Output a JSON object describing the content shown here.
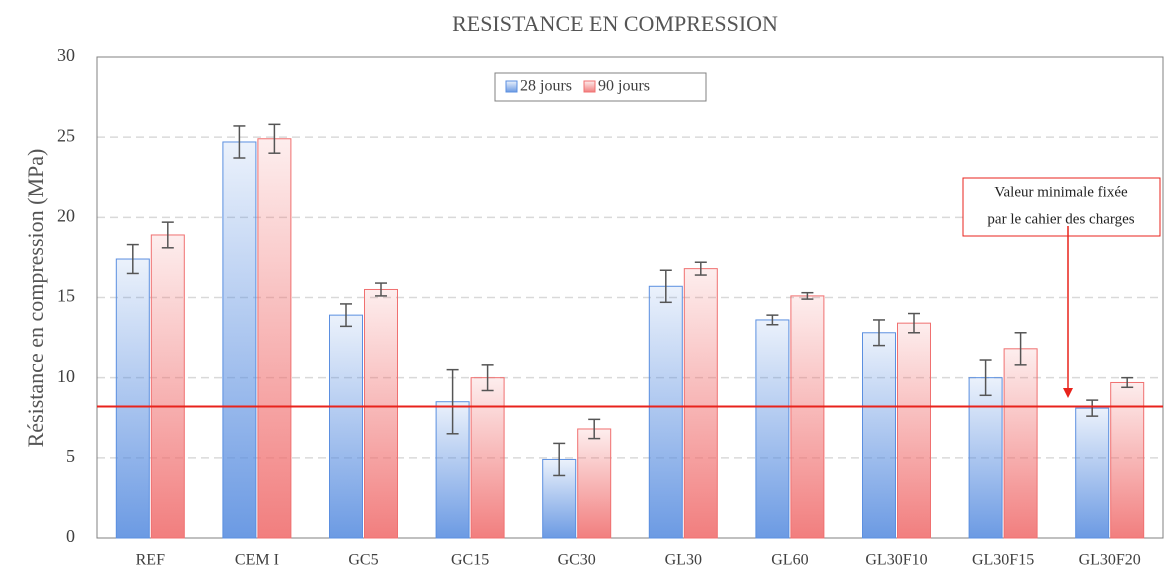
{
  "chart_data": {
    "type": "bar",
    "title": "RESISTANCE EN COMPRESSION",
    "y_label": "Résistance en compression (MPa)",
    "categories": [
      "REF",
      "CEM I",
      "GC5",
      "GC15",
      "GC30",
      "GL30",
      "GL60",
      "GL30F10",
      "GL30F15",
      "GL30F20"
    ],
    "series": [
      {
        "name": "28 jours",
        "color": "#5b8fe0",
        "values": [
          17.4,
          24.7,
          13.9,
          8.5,
          4.9,
          15.7,
          13.6,
          12.8,
          10.0,
          8.1
        ],
        "errors": [
          0.9,
          1.0,
          0.7,
          2.0,
          1.0,
          1.0,
          0.3,
          0.8,
          1.1,
          0.5
        ]
      },
      {
        "name": "90 jours",
        "color": "#f07070",
        "values": [
          18.9,
          24.9,
          15.5,
          10.0,
          6.8,
          16.8,
          15.1,
          13.4,
          11.8,
          9.7
        ],
        "errors": [
          0.8,
          0.9,
          0.4,
          0.8,
          0.6,
          0.4,
          0.2,
          0.6,
          1.0,
          0.3
        ]
      }
    ],
    "ylim": [
      0,
      30
    ],
    "yticks": [
      0,
      5,
      10,
      15,
      20,
      25,
      30
    ],
    "grid": true,
    "legend": "top",
    "reference_line": {
      "value": 8.2,
      "color": "#e8231c",
      "annotation": [
        "Valeur minimale fixée",
        "par le cahier des charges"
      ]
    }
  }
}
